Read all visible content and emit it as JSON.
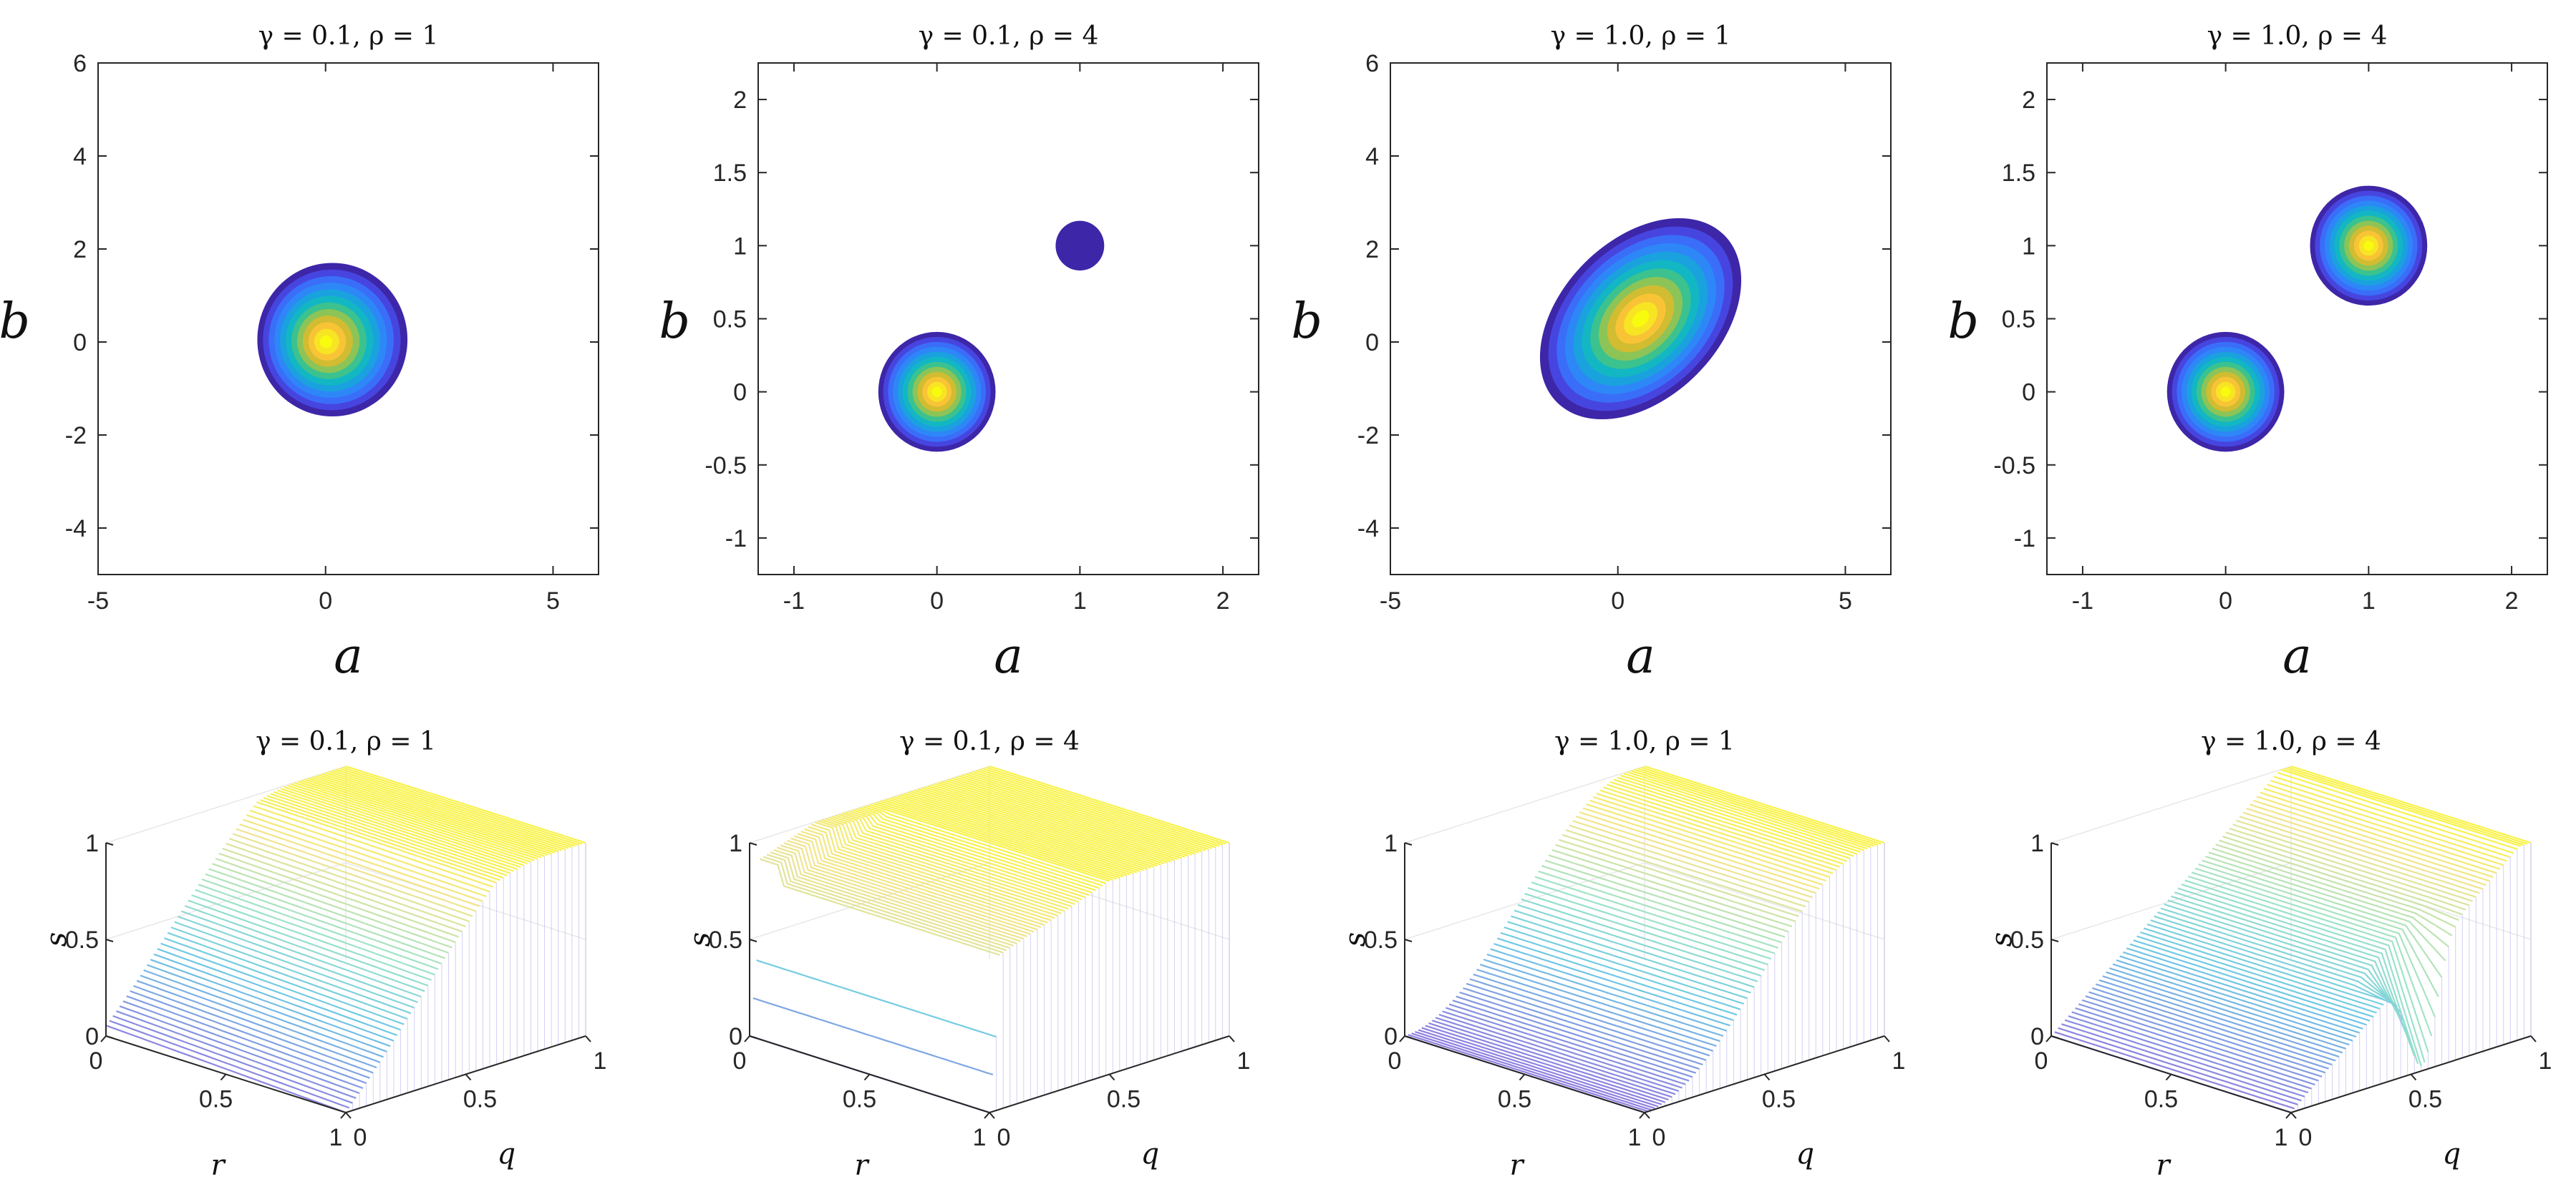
{
  "chart_data": [
    {
      "type": "heatmap",
      "title": "γ = 0.1, ρ = 1",
      "xlabel": "a",
      "ylabel": "b",
      "xlim": [
        -5,
        6
      ],
      "ylim": [
        -5,
        6
      ],
      "xticks": [
        {
          "v": -5,
          "label": "-5"
        },
        {
          "v": 0,
          "label": "0"
        },
        {
          "v": 5,
          "label": "5"
        }
      ],
      "yticks": [
        {
          "v": -4,
          "label": "-4"
        },
        {
          "v": -2,
          "label": "-2"
        },
        {
          "v": 0,
          "label": "0"
        },
        {
          "v": 2,
          "label": "2"
        },
        {
          "v": 4,
          "label": "4"
        },
        {
          "v": 6,
          "label": "6"
        }
      ],
      "blobs": [
        {
          "cx": 0,
          "cy": 0,
          "rx": 1.65,
          "ry": 1.65,
          "rotation": 0,
          "offset": [
            0.15,
            0.05
          ],
          "peak": 1.0
        }
      ]
    },
    {
      "type": "heatmap",
      "title": "γ = 0.1, ρ = 4",
      "xlabel": "a",
      "ylabel": "b",
      "xlim": [
        -1.25,
        2.25
      ],
      "ylim": [
        -1.25,
        2.25
      ],
      "xticks": [
        {
          "v": -1,
          "label": "-1"
        },
        {
          "v": 0,
          "label": "0"
        },
        {
          "v": 1,
          "label": "1"
        },
        {
          "v": 2,
          "label": "2"
        }
      ],
      "yticks": [
        {
          "v": -1,
          "label": "-1"
        },
        {
          "v": -0.5,
          "label": "-0.5"
        },
        {
          "v": 0,
          "label": "0"
        },
        {
          "v": 0.5,
          "label": "0.5"
        },
        {
          "v": 1,
          "label": "1"
        },
        {
          "v": 1.5,
          "label": "1.5"
        },
        {
          "v": 2,
          "label": "2"
        }
      ],
      "blobs": [
        {
          "cx": 0,
          "cy": 0,
          "rx": 0.41,
          "ry": 0.41,
          "rotation": 0,
          "offset": [
            0,
            0
          ],
          "peak": 1.0
        },
        {
          "cx": 1,
          "cy": 1,
          "rx": 0.17,
          "ry": 0.17,
          "rotation": 0,
          "offset": [
            0,
            0
          ],
          "peak": 0.0
        }
      ]
    },
    {
      "type": "heatmap",
      "title": "γ = 1.0, ρ = 1",
      "xlabel": "a",
      "ylabel": "b",
      "xlim": [
        -5,
        6
      ],
      "ylim": [
        -5,
        6
      ],
      "xticks": [
        {
          "v": -5,
          "label": "-5"
        },
        {
          "v": 0,
          "label": "0"
        },
        {
          "v": 5,
          "label": "5"
        }
      ],
      "yticks": [
        {
          "v": -4,
          "label": "-4"
        },
        {
          "v": -2,
          "label": "-2"
        },
        {
          "v": 0,
          "label": "0"
        },
        {
          "v": 2,
          "label": "2"
        },
        {
          "v": 4,
          "label": "4"
        },
        {
          "v": 6,
          "label": "6"
        }
      ],
      "blobs": [
        {
          "cx": 0.5,
          "cy": 0.5,
          "rx": 2.6,
          "ry": 1.7,
          "rotation": 45,
          "offset": [
            0,
            0
          ],
          "peak": 1.0
        }
      ]
    },
    {
      "type": "heatmap",
      "title": "γ = 1.0, ρ = 4",
      "xlabel": "a",
      "ylabel": "b",
      "xlim": [
        -1.25,
        2.25
      ],
      "ylim": [
        -1.25,
        2.25
      ],
      "xticks": [
        {
          "v": -1,
          "label": "-1"
        },
        {
          "v": 0,
          "label": "0"
        },
        {
          "v": 1,
          "label": "1"
        },
        {
          "v": 2,
          "label": "2"
        }
      ],
      "yticks": [
        {
          "v": -1,
          "label": "-1"
        },
        {
          "v": -0.5,
          "label": "-0.5"
        },
        {
          "v": 0,
          "label": "0"
        },
        {
          "v": 0.5,
          "label": "0.5"
        },
        {
          "v": 1,
          "label": "1"
        },
        {
          "v": 1.5,
          "label": "1.5"
        },
        {
          "v": 2,
          "label": "2"
        }
      ],
      "blobs": [
        {
          "cx": 0,
          "cy": 0,
          "rx": 0.41,
          "ry": 0.41,
          "rotation": 0,
          "offset": [
            0,
            0
          ],
          "peak": 1.0
        },
        {
          "cx": 1,
          "cy": 1,
          "rx": 0.41,
          "ry": 0.41,
          "rotation": 0,
          "offset": [
            0,
            0
          ],
          "peak": 1.0
        }
      ]
    },
    {
      "type": "surface",
      "title": "γ = 0.1, ρ = 1",
      "xlabel": "r",
      "ylabel": "q",
      "zlabel": "s",
      "r_ticks": [
        "0",
        "0.5",
        "1"
      ],
      "q_ticks": [
        "0",
        "0.5",
        "1"
      ],
      "s_ticks": [
        "0",
        "0.5",
        "1"
      ],
      "zlim": [
        0,
        1
      ],
      "surface": "concave rise in q, saturating at s = 1"
    },
    {
      "type": "surface",
      "title": "γ = 0.1, ρ = 4",
      "xlabel": "r",
      "ylabel": "q",
      "zlabel": "s",
      "r_ticks": [
        "0",
        "0.5",
        "1"
      ],
      "q_ticks": [
        "0",
        "0.5",
        "1"
      ],
      "s_ticks": [
        "0",
        "0.5",
        "1"
      ],
      "zlim": [
        0,
        1
      ],
      "surface": "cliff: s near 1 over most of the domain, sharp drop to 0 along q = 0"
    },
    {
      "type": "surface",
      "title": "γ = 1.0, ρ = 1",
      "xlabel": "r",
      "ylabel": "q",
      "zlabel": "s",
      "r_ticks": [
        "0",
        "0.5",
        "1"
      ],
      "q_ticks": [
        "0",
        "0.5",
        "1"
      ],
      "s_ticks": [
        "0",
        "0.5",
        "1"
      ],
      "zlim": [
        0,
        1
      ],
      "surface": "smooth sigmoidal rise in q to s = 1"
    },
    {
      "type": "surface",
      "title": "γ = 1.0, ρ = 4",
      "xlabel": "r",
      "ylabel": "q",
      "zlabel": "s",
      "r_ticks": [
        "0",
        "0.5",
        "1"
      ],
      "q_ticks": [
        "0",
        "0.5",
        "1"
      ],
      "s_ticks": [
        "0",
        "0.5",
        "1"
      ],
      "zlim": [
        0,
        1
      ],
      "surface": "linear rise to s = 1 with a narrow dip to about 0.4 near r = 1"
    }
  ],
  "colors": {
    "parula_dark": "#3e26a8",
    "parula_blue": "#2e87f7",
    "parula_teal": "#20c1a8",
    "parula_yellow": "#f9fb0e",
    "axis": "#262626"
  }
}
